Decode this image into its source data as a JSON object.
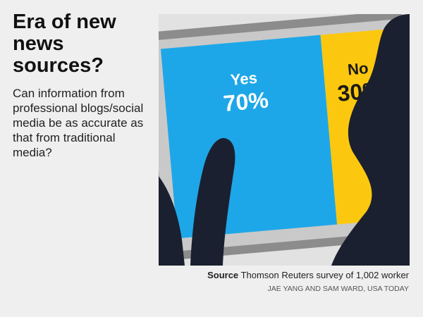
{
  "chart_data": {
    "type": "split",
    "title": "Era of new news sources?",
    "subtitle": "Can information from professional blogs/social media be as accurate as that from traditional media?",
    "categories": [
      "Yes",
      "No"
    ],
    "values": [
      70,
      30
    ],
    "value_labels": [
      "70%",
      "30%"
    ],
    "colors": [
      "#1ea7e8",
      "#fcc80f"
    ],
    "label_colors": [
      "#ffffff",
      "#1a1a1a"
    ],
    "source_label": "Source",
    "source": "Thomson Reuters survey of 1,002 worker",
    "credit": "JAE YANG AND SAM WARD, USA TODAY"
  }
}
